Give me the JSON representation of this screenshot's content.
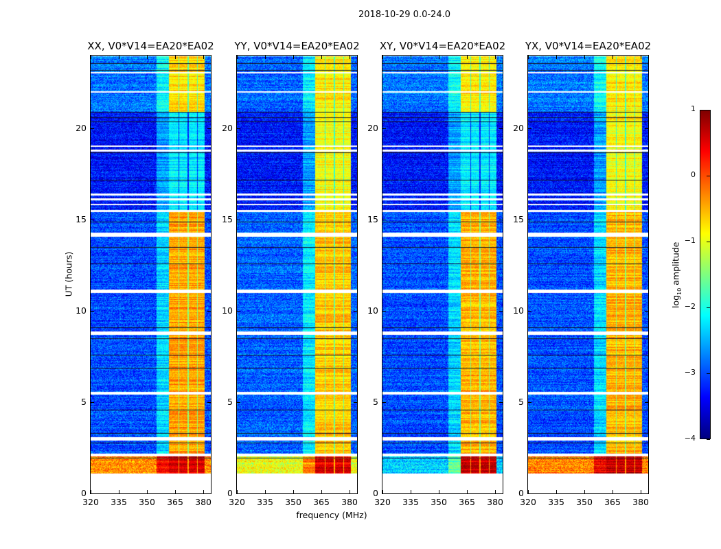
{
  "chart_data": {
    "type": "heatmap",
    "title": "2018-10-29 0.0-24.0",
    "xlabel": "frequency (MHz)",
    "ylabel": "UT (hours)",
    "xlim": [
      320,
      384
    ],
    "ylim": [
      0,
      24
    ],
    "xticks": [
      "320",
      "335",
      "350",
      "365",
      "380"
    ],
    "yticks": [
      "0",
      "5",
      "10",
      "15",
      "20"
    ],
    "colorbar": {
      "label": "log10 amplitude",
      "label_main": "log",
      "label_sub": "10",
      "label_rest": " amplitude",
      "range": [
        -4,
        1
      ],
      "ticks": [
        "1",
        "0",
        "−1",
        "−2",
        "−3",
        "−4"
      ],
      "colormap": "jet"
    },
    "data_start_hours": 1.1,
    "flagged_hours": [
      [
        2.05,
        2.2
      ],
      [
        2.9,
        3.1
      ],
      [
        5.45,
        5.6
      ],
      [
        8.7,
        8.9
      ],
      [
        11.0,
        11.2
      ],
      [
        14.1,
        14.3
      ],
      [
        15.45,
        15.55
      ],
      [
        15.8,
        15.9
      ],
      [
        16.1,
        16.2
      ],
      [
        16.35,
        16.45
      ],
      [
        18.75,
        18.85
      ],
      [
        19.0,
        19.1
      ],
      [
        22.0,
        22.05
      ],
      [
        23.05,
        23.1
      ]
    ],
    "dark_lines_hours": [
      1.95,
      2.8,
      3.3,
      4.6,
      6.9,
      7.6,
      8.5,
      9.1,
      12.6,
      13.5,
      14.9,
      17.2,
      18.7,
      20.4,
      20.6,
      20.9,
      23.2,
      23.6
    ],
    "high_band_channels_mhz": [
      [
        361.5,
        366.5
      ],
      [
        367,
        371.5
      ],
      [
        372,
        376.5
      ],
      [
        377,
        380.5
      ]
    ],
    "panels": [
      {
        "title": "XX, V0*V14=EA20*EA02",
        "segments": [
          {
            "hours": [
              1.1,
              2.05
            ],
            "low_band": -0.3,
            "high_band": 0.6
          },
          {
            "hours": [
              2.05,
              15.5
            ],
            "low_band": -3.0,
            "high_band": -0.4
          },
          {
            "hours": [
              15.5,
              20.9
            ],
            "low_band": -3.3,
            "high_band": -2.2
          },
          {
            "hours": [
              20.9,
              24
            ],
            "low_band": -2.8,
            "high_band": -0.7
          }
        ]
      },
      {
        "title": "YY, V0*V14=EA20*EA02",
        "segments": [
          {
            "hours": [
              1.1,
              2.05
            ],
            "low_band": -1.0,
            "high_band": 0.5
          },
          {
            "hours": [
              2.05,
              15.5
            ],
            "low_band": -2.9,
            "high_band": -0.6
          },
          {
            "hours": [
              15.5,
              20.9
            ],
            "low_band": -3.3,
            "high_band": -0.9
          },
          {
            "hours": [
              20.9,
              24
            ],
            "low_band": -2.9,
            "high_band": -0.8
          }
        ]
      },
      {
        "title": "XY, V0*V14=EA20*EA02",
        "segments": [
          {
            "hours": [
              1.1,
              2.05
            ],
            "low_band": -2.4,
            "high_band": 0.6
          },
          {
            "hours": [
              2.05,
              15.5
            ],
            "low_band": -3.0,
            "high_band": -0.5
          },
          {
            "hours": [
              15.5,
              20.9
            ],
            "low_band": -3.3,
            "high_band": -2.2
          },
          {
            "hours": [
              20.9,
              24
            ],
            "low_band": -2.8,
            "high_band": -0.8
          }
        ]
      },
      {
        "title": "YX, V0*V14=EA20*EA02",
        "segments": [
          {
            "hours": [
              1.1,
              2.05
            ],
            "low_band": -0.3,
            "high_band": 0.6
          },
          {
            "hours": [
              2.05,
              15.5
            ],
            "low_band": -3.0,
            "high_band": -0.5
          },
          {
            "hours": [
              15.5,
              20.9
            ],
            "low_band": -3.3,
            "high_band": -0.9
          },
          {
            "hours": [
              20.9,
              24
            ],
            "low_band": -2.8,
            "high_band": -0.8
          }
        ]
      }
    ]
  }
}
